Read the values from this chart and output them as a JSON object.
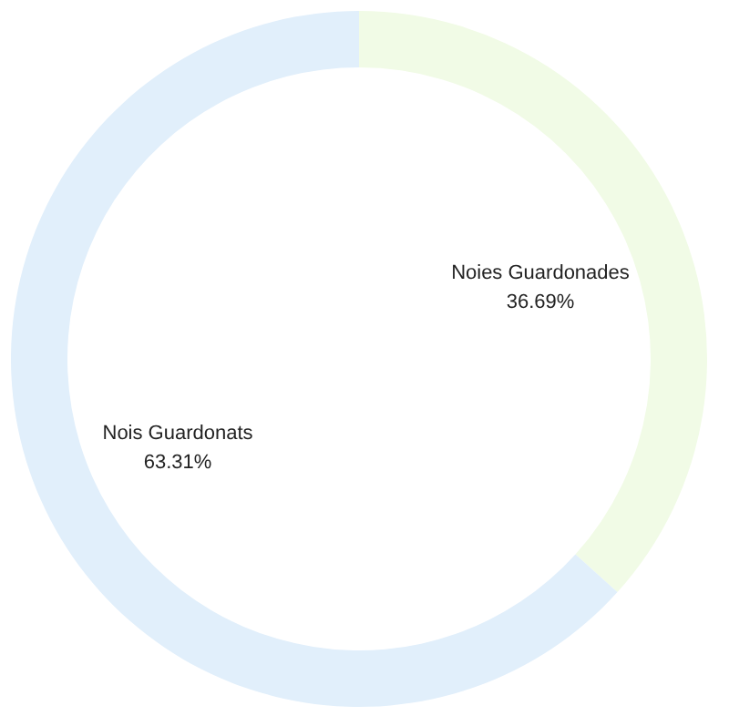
{
  "chart_data": {
    "type": "donut",
    "categories": [
      "Noies Guardonades",
      "Nois Guardonats"
    ],
    "values": [
      36.69,
      63.31
    ],
    "colors": [
      "#f1fbe6",
      "#e1effb"
    ],
    "value_labels": [
      "36.69%",
      "63.31%"
    ]
  }
}
